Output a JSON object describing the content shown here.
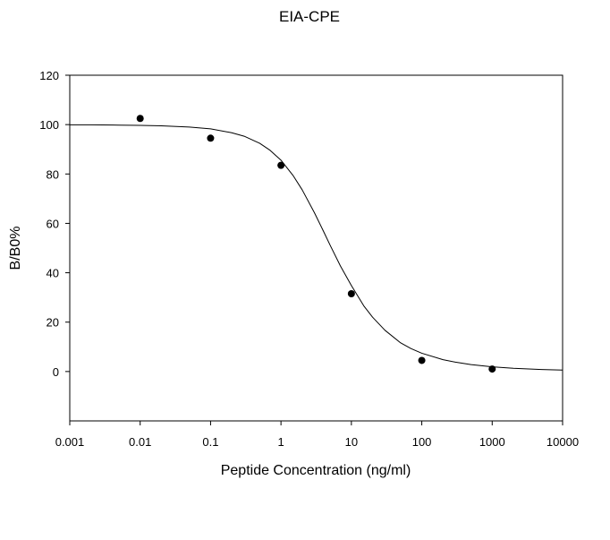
{
  "chart_data": {
    "type": "scatter",
    "title": "EIA-CPE",
    "xlabel": "Peptide Concentration (ng/ml)",
    "ylabel": "B/B0%",
    "x_scale": "log",
    "xlim": [
      0.001,
      10000
    ],
    "ylim": [
      -20,
      120
    ],
    "x_ticks": [
      0.001,
      0.01,
      0.1,
      1,
      10,
      100,
      1000,
      10000
    ],
    "x_tick_labels": [
      "0.001",
      "0.01",
      "0.1",
      "1",
      "10",
      "100",
      "1000",
      "10000"
    ],
    "y_ticks": [
      0,
      20,
      40,
      60,
      80,
      100,
      120
    ],
    "y_tick_labels": [
      "0",
      "20",
      "40",
      "60",
      "80",
      "100",
      "120"
    ],
    "grid": false,
    "legend": "none",
    "colors": {
      "points": "#000000",
      "curve": "#000000",
      "frame": "#000000"
    },
    "series": [
      {
        "kind": "points",
        "x": [
          0.01,
          0.1,
          1,
          10,
          100,
          1000
        ],
        "y": [
          102.5,
          94.5,
          83.5,
          31.5,
          4.5,
          1.0
        ]
      },
      {
        "kind": "fit-curve",
        "x": [
          0.001,
          0.002,
          0.005,
          0.01,
          0.02,
          0.05,
          0.1,
          0.2,
          0.3,
          0.5,
          0.7,
          1,
          1.5,
          2,
          3,
          4,
          5,
          7,
          10,
          15,
          20,
          30,
          50,
          70,
          100,
          200,
          300,
          500,
          1000,
          2000,
          5000,
          10000
        ],
        "y": [
          99.9,
          99.9,
          99.8,
          99.7,
          99.5,
          99.0,
          98.3,
          96.7,
          95.3,
          92.4,
          89.6,
          85.6,
          79.2,
          73.6,
          64.2,
          56.9,
          51.1,
          42.7,
          34.8,
          26.6,
          22.0,
          16.7,
          11.6,
          9.3,
          7.4,
          4.8,
          3.8,
          2.8,
          1.9,
          1.3,
          0.8,
          0.6
        ]
      }
    ]
  }
}
